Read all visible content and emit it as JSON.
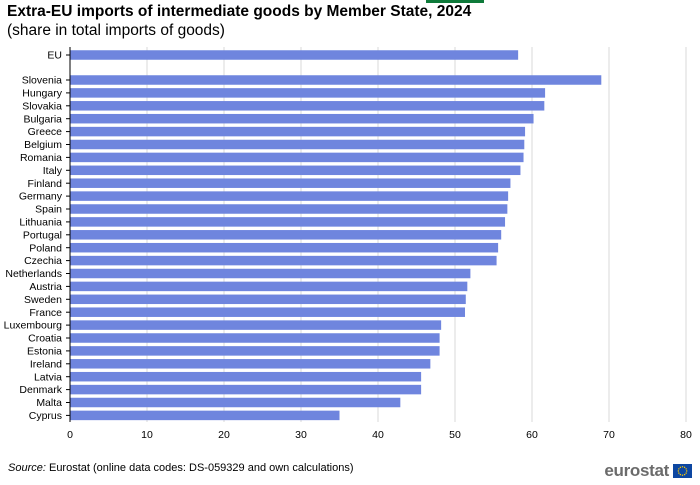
{
  "header": {
    "title": "Extra-EU imports of intermediate goods by Member State, 2024",
    "subtitle": "(share in total imports of goods)"
  },
  "footer": {
    "source_label": "Source:",
    "source_text": " Eurostat (online data codes: DS-059329 and own calculations)",
    "logo_text": "eurostat",
    "logo_icon": "eu-flag-icon"
  },
  "colors": {
    "bar": "#6f85de",
    "gridline": "#d9d9d9",
    "axis": "#000000",
    "accent": "#0e7a3a",
    "logo_text": "#6b6b6b",
    "flag_blue": "#0d47a1",
    "flag_stars": "#ffcc00"
  },
  "chart_data": {
    "type": "bar",
    "orientation": "horizontal",
    "categories": [
      "EU",
      "Slovenia",
      "Hungary",
      "Slovakia",
      "Bulgaria",
      "Greece",
      "Belgium",
      "Romania",
      "Italy",
      "Finland",
      "Germany",
      "Spain",
      "Lithuania",
      "Portugal",
      "Poland",
      "Czechia",
      "Netherlands",
      "Austria",
      "Sweden",
      "France",
      "Luxembourg",
      "Croatia",
      "Estonia",
      "Ireland",
      "Latvia",
      "Denmark",
      "Malta",
      "Cyprus"
    ],
    "values": [
      58.2,
      69.0,
      61.7,
      61.6,
      60.2,
      59.1,
      59.0,
      58.9,
      58.5,
      57.2,
      56.9,
      56.8,
      56.5,
      56.0,
      55.6,
      55.4,
      52.0,
      51.6,
      51.4,
      51.3,
      48.2,
      48.0,
      48.0,
      46.8,
      45.6,
      45.6,
      42.9,
      35.0
    ],
    "xlim": [
      0,
      80
    ],
    "xticks": [
      0,
      10,
      20,
      30,
      40,
      50,
      60,
      70,
      80
    ],
    "xlabel": "",
    "ylabel": "",
    "grid": "vertical",
    "legend": "none"
  }
}
